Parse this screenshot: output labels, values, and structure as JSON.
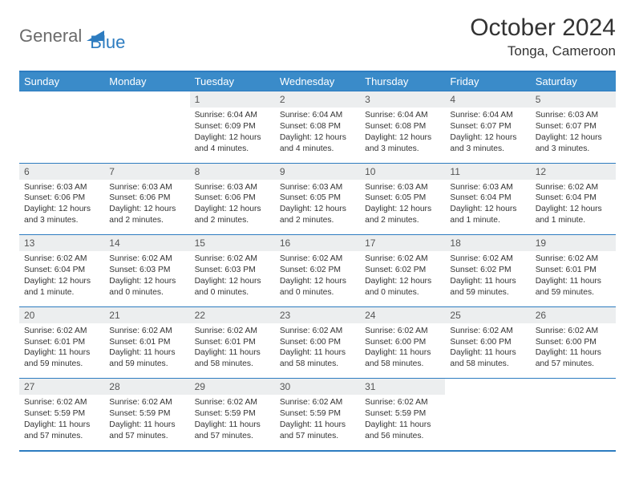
{
  "brand": {
    "general": "General",
    "blue": "Blue"
  },
  "title": "October 2024",
  "location": "Tonga, Cameroon",
  "colors": {
    "header_bg": "#3a8bc9",
    "header_text": "#ffffff",
    "border": "#2d7cc0",
    "daynum_bg": "#eceeef",
    "text": "#333333",
    "logo_gray": "#6b6b6b",
    "logo_blue": "#2d7cc0"
  },
  "days_of_week": [
    "Sunday",
    "Monday",
    "Tuesday",
    "Wednesday",
    "Thursday",
    "Friday",
    "Saturday"
  ],
  "weeks": [
    {
      "nums": [
        "",
        "",
        "1",
        "2",
        "3",
        "4",
        "5"
      ],
      "cells": [
        "",
        "",
        "Sunrise: 6:04 AM\nSunset: 6:09 PM\nDaylight: 12 hours and 4 minutes.",
        "Sunrise: 6:04 AM\nSunset: 6:08 PM\nDaylight: 12 hours and 4 minutes.",
        "Sunrise: 6:04 AM\nSunset: 6:08 PM\nDaylight: 12 hours and 3 minutes.",
        "Sunrise: 6:04 AM\nSunset: 6:07 PM\nDaylight: 12 hours and 3 minutes.",
        "Sunrise: 6:03 AM\nSunset: 6:07 PM\nDaylight: 12 hours and 3 minutes."
      ]
    },
    {
      "nums": [
        "6",
        "7",
        "8",
        "9",
        "10",
        "11",
        "12"
      ],
      "cells": [
        "Sunrise: 6:03 AM\nSunset: 6:06 PM\nDaylight: 12 hours and 3 minutes.",
        "Sunrise: 6:03 AM\nSunset: 6:06 PM\nDaylight: 12 hours and 2 minutes.",
        "Sunrise: 6:03 AM\nSunset: 6:06 PM\nDaylight: 12 hours and 2 minutes.",
        "Sunrise: 6:03 AM\nSunset: 6:05 PM\nDaylight: 12 hours and 2 minutes.",
        "Sunrise: 6:03 AM\nSunset: 6:05 PM\nDaylight: 12 hours and 2 minutes.",
        "Sunrise: 6:03 AM\nSunset: 6:04 PM\nDaylight: 12 hours and 1 minute.",
        "Sunrise: 6:02 AM\nSunset: 6:04 PM\nDaylight: 12 hours and 1 minute."
      ]
    },
    {
      "nums": [
        "13",
        "14",
        "15",
        "16",
        "17",
        "18",
        "19"
      ],
      "cells": [
        "Sunrise: 6:02 AM\nSunset: 6:04 PM\nDaylight: 12 hours and 1 minute.",
        "Sunrise: 6:02 AM\nSunset: 6:03 PM\nDaylight: 12 hours and 0 minutes.",
        "Sunrise: 6:02 AM\nSunset: 6:03 PM\nDaylight: 12 hours and 0 minutes.",
        "Sunrise: 6:02 AM\nSunset: 6:02 PM\nDaylight: 12 hours and 0 minutes.",
        "Sunrise: 6:02 AM\nSunset: 6:02 PM\nDaylight: 12 hours and 0 minutes.",
        "Sunrise: 6:02 AM\nSunset: 6:02 PM\nDaylight: 11 hours and 59 minutes.",
        "Sunrise: 6:02 AM\nSunset: 6:01 PM\nDaylight: 11 hours and 59 minutes."
      ]
    },
    {
      "nums": [
        "20",
        "21",
        "22",
        "23",
        "24",
        "25",
        "26"
      ],
      "cells": [
        "Sunrise: 6:02 AM\nSunset: 6:01 PM\nDaylight: 11 hours and 59 minutes.",
        "Sunrise: 6:02 AM\nSunset: 6:01 PM\nDaylight: 11 hours and 59 minutes.",
        "Sunrise: 6:02 AM\nSunset: 6:01 PM\nDaylight: 11 hours and 58 minutes.",
        "Sunrise: 6:02 AM\nSunset: 6:00 PM\nDaylight: 11 hours and 58 minutes.",
        "Sunrise: 6:02 AM\nSunset: 6:00 PM\nDaylight: 11 hours and 58 minutes.",
        "Sunrise: 6:02 AM\nSunset: 6:00 PM\nDaylight: 11 hours and 58 minutes.",
        "Sunrise: 6:02 AM\nSunset: 6:00 PM\nDaylight: 11 hours and 57 minutes."
      ]
    },
    {
      "nums": [
        "27",
        "28",
        "29",
        "30",
        "31",
        "",
        ""
      ],
      "cells": [
        "Sunrise: 6:02 AM\nSunset: 5:59 PM\nDaylight: 11 hours and 57 minutes.",
        "Sunrise: 6:02 AM\nSunset: 5:59 PM\nDaylight: 11 hours and 57 minutes.",
        "Sunrise: 6:02 AM\nSunset: 5:59 PM\nDaylight: 11 hours and 57 minutes.",
        "Sunrise: 6:02 AM\nSunset: 5:59 PM\nDaylight: 11 hours and 57 minutes.",
        "Sunrise: 6:02 AM\nSunset: 5:59 PM\nDaylight: 11 hours and 56 minutes.",
        "",
        ""
      ]
    }
  ]
}
